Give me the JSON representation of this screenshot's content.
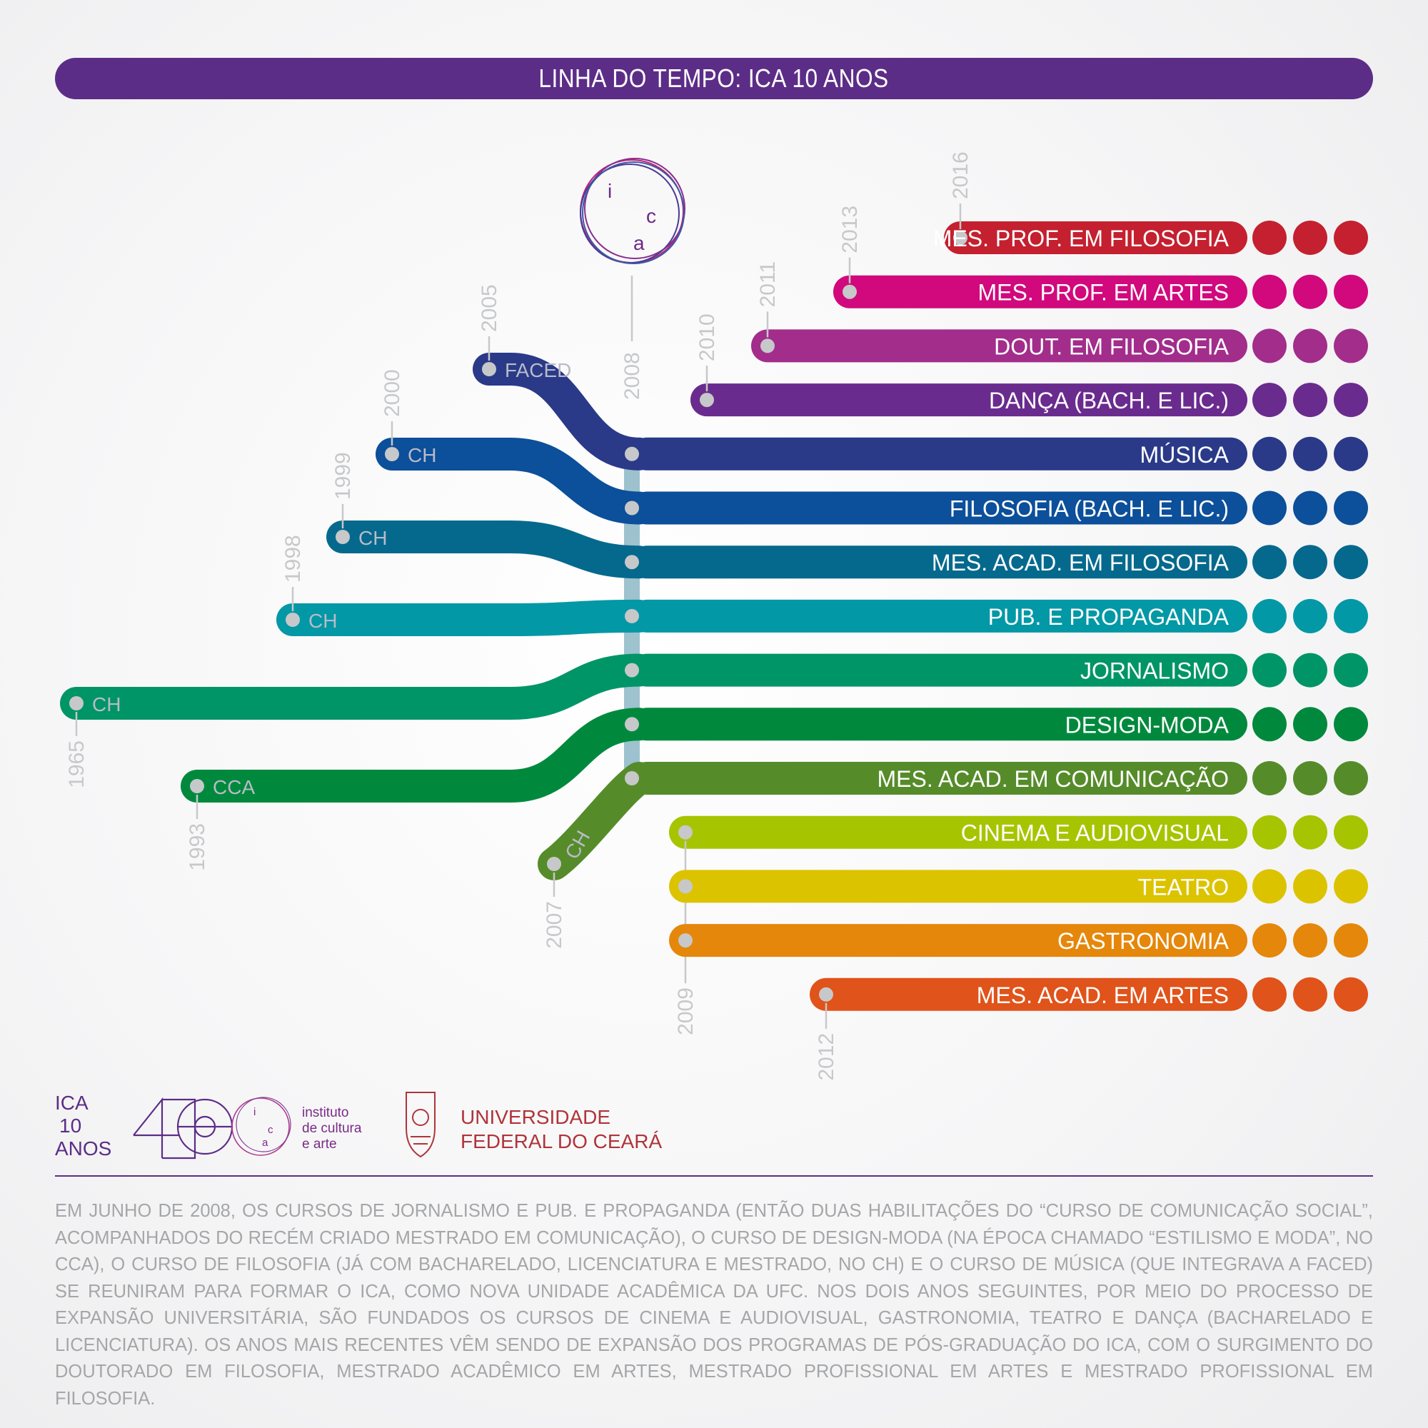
{
  "title": "LINHA DO TEMPO: ICA 10 ANOS",
  "center": {
    "year": "2008",
    "logo_letters": [
      "i",
      "c",
      "a"
    ]
  },
  "courses": [
    {
      "label": "MES. PROF. EM FILOSOFIA",
      "year": "2016",
      "color": "#c4202f",
      "origin": null
    },
    {
      "label": "MES. PROF. EM ARTES",
      "year": "2013",
      "color": "#d1097d",
      "origin": null
    },
    {
      "label": "DOUT. EM FILOSOFIA",
      "year": "2011",
      "color": "#a22d8b",
      "origin": null
    },
    {
      "label": "DANÇA (BACH. E LIC.)",
      "year": "2010",
      "color": "#6a2b8e",
      "origin": null
    },
    {
      "label": "MÚSICA",
      "year": "2005",
      "color": "#2a3a88",
      "origin": "FACED"
    },
    {
      "label": "FILOSOFIA (BACH. E LIC.)",
      "year": "2000",
      "color": "#0c4f9a",
      "origin": "CH"
    },
    {
      "label": "MES. ACAD. EM FILOSOFIA",
      "year": "1999",
      "color": "#05698d",
      "origin": "CH"
    },
    {
      "label": "PUB. E PROPAGANDA",
      "year": "1998",
      "color": "#0398a6",
      "origin": "CH"
    },
    {
      "label": "JORNALISMO",
      "year": "1965",
      "color": "#009566",
      "origin": "CH"
    },
    {
      "label": "DESIGN-MODA",
      "year": "1993",
      "color": "#00893d",
      "origin": "CCA"
    },
    {
      "label": "MES. ACAD. EM COMUNICAÇÃO",
      "year": "2007",
      "color": "#568b2a",
      "origin": "CH"
    },
    {
      "label": "CINEMA E AUDIOVISUAL",
      "year": "2009",
      "color": "#a7c400",
      "origin": null
    },
    {
      "label": "TEATRO",
      "year": "",
      "color": "#dcc300",
      "origin": null
    },
    {
      "label": "GASTRONOMIA",
      "year": "",
      "color": "#e5870a",
      "origin": null
    },
    {
      "label": "MES. ACAD. EM ARTES",
      "year": "2012",
      "color": "#e0531a",
      "origin": null
    }
  ],
  "footer": {
    "ica_logo": {
      "line1": "ICA",
      "line2": "10",
      "line3": "ANOS"
    },
    "instituto": {
      "line1": "instituto",
      "line2": "de cultura",
      "line3": "e arte"
    },
    "ufc": {
      "line1": "UNIVERSIDADE",
      "line2": "FEDERAL DO CEARÁ"
    },
    "paragraph": "EM JUNHO DE 2008, OS CURSOS DE JORNALISMO E PUB. E PROPAGANDA (ENTÃO DUAS HABILITAÇÕES DO “CURSO DE COMUNICAÇÃO SOCIAL”, ACOMPANHADOS DO RECÉM CRIADO MESTRADO EM COMUNICAÇÃO), O CURSO DE DESIGN-MODA (NA ÉPOCA CHAMADO “ESTILISMO E MODA”, NO CCA), O CURSO DE FILOSOFIA (JÁ COM BACHARELADO, LICENCIATURA E MESTRADO, NO CH) E O CURSO DE MÚSICA (QUE INTEGRAVA A FACED) SE REUNIRAM PARA FORMAR O ICA, COMO NOVA UNIDADE ACADÊMICA DA UFC. NOS DOIS ANOS SEGUINTES, POR MEIO DO PROCESSO DE EXPANSÃO UNIVERSITÁRIA, SÃO FUNDADOS OS CURSOS DE CINEMA E AUDIOVISUAL, GASTRONOMIA, TEATRO E DANÇA (BACHARELADO E LICENCIATURA). OS ANOS MAIS RECENTES VÊM SENDO DE EXPANSÃO DOS PROGRAMAS DE PÓS-GRADUAÇÃO DO ICA, COM O SURGIMENTO DO DOUTORADO EM FILOSOFIA, MESTRADO ACADÊMICO EM ARTES, MESTRADO PROFISSIONAL EM ARTES E MESTRADO PROFISSIONAL EM FILOSOFIA."
  }
}
